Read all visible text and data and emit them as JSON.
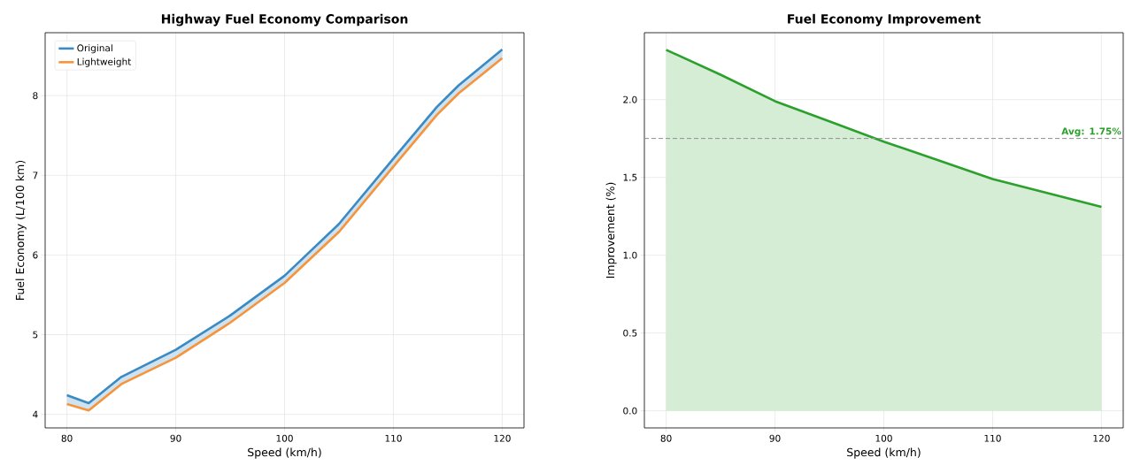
{
  "chart_data": [
    {
      "type": "line",
      "title": "Highway Fuel Economy Comparison",
      "xlabel": "Speed (km/h)",
      "ylabel": "Fuel Economy (L/100 km)",
      "x": [
        80,
        82,
        85,
        90,
        95,
        100,
        105,
        110,
        114,
        116,
        120
      ],
      "series": [
        {
          "name": "Original",
          "color": "#3a8ac4",
          "values": [
            4.24,
            4.14,
            4.47,
            4.81,
            5.24,
            5.74,
            6.39,
            7.21,
            7.86,
            8.13,
            8.58
          ],
          "lower": [
            4.13,
            4.05,
            4.38,
            4.71,
            5.15,
            5.65,
            6.29,
            7.11,
            7.76,
            8.03,
            8.47
          ],
          "upper": [
            4.24,
            4.14,
            4.47,
            4.81,
            5.24,
            5.74,
            6.39,
            7.21,
            7.86,
            8.13,
            8.58
          ]
        },
        {
          "name": "Lightweight",
          "color": "#f7943a",
          "values": [
            4.13,
            4.05,
            4.38,
            4.71,
            5.15,
            5.65,
            6.29,
            7.11,
            7.76,
            8.03,
            8.47
          ]
        }
      ],
      "xlim": [
        78,
        122
      ],
      "ylim": [
        3.83,
        8.79
      ],
      "xticks": [
        80,
        90,
        100,
        110,
        120
      ],
      "yticks": [
        4,
        5,
        6,
        7,
        8
      ],
      "grid": true,
      "legend": "top left"
    },
    {
      "type": "area",
      "title": "Fuel Economy Improvement",
      "xlabel": "Speed (km/h)",
      "ylabel": "Improvement (%)",
      "x": [
        80,
        85,
        90,
        95,
        100,
        105,
        110,
        115,
        120
      ],
      "series": [
        {
          "color": "#2ca02c",
          "values": [
            2.32,
            2.16,
            1.99,
            1.86,
            1.73,
            1.61,
            1.49,
            1.4,
            1.31
          ]
        }
      ],
      "ref_lines": [
        {
          "axis": "y",
          "value": 1.75,
          "label": "Avg: 1.75%",
          "color": "#999999",
          "line_style": "dashed"
        }
      ],
      "xlim": [
        78,
        122
      ],
      "ylim": [
        -0.11,
        2.43
      ],
      "xticks": [
        80,
        90,
        100,
        110,
        120
      ],
      "yticks": [
        {
          "value": 0,
          "label": "0.0"
        },
        {
          "value": 0.5,
          "label": "0.5"
        },
        {
          "value": 1,
          "label": "1.0"
        },
        {
          "value": 1.5,
          "label": "1.5"
        },
        {
          "value": 2,
          "label": "2.0"
        }
      ],
      "grid": true,
      "legend": false
    }
  ]
}
